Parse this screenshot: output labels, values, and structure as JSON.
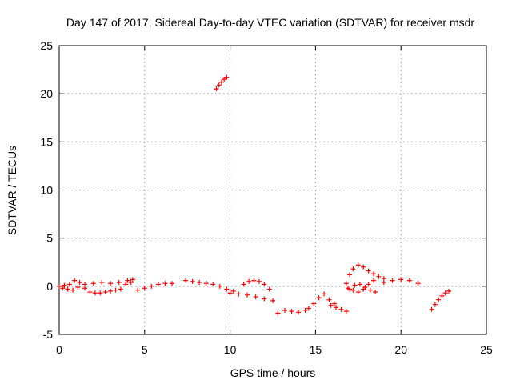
{
  "chart_data": {
    "type": "scatter",
    "title": "Day 147 of 2017, Sidereal Day-to-day VTEC variation (SDTVAR) for receiver msdr",
    "xlabel": "GPS time / hours",
    "ylabel": "SDTVAR / TECUs",
    "xlim": [
      0,
      25
    ],
    "ylim": [
      -5,
      25
    ],
    "xticks": [
      0,
      5,
      10,
      15,
      20,
      25
    ],
    "yticks": [
      -5,
      0,
      5,
      10,
      15,
      20,
      25
    ],
    "grid": true,
    "marker": "+",
    "color": "#ff0000",
    "segments": [
      {
        "name": "seg-a",
        "x": [
          0.0,
          0.3,
          0.6,
          0.9,
          1.2,
          1.5,
          1.8,
          2.1,
          2.4,
          2.7,
          3.0,
          3.3,
          3.6,
          3.9,
          4.2
        ],
        "y": [
          0.0,
          0.1,
          0.2,
          0.6,
          0.4,
          -0.2,
          -0.6,
          -0.7,
          -0.7,
          -0.6,
          -0.5,
          -0.4,
          -0.3,
          0.2,
          0.4
        ]
      },
      {
        "name": "seg-a2",
        "x": [
          0.2,
          0.5,
          0.8,
          1.1,
          1.5,
          2.0,
          2.5,
          3.0,
          3.5,
          4.0,
          4.3
        ],
        "y": [
          -0.2,
          -0.3,
          -0.4,
          -0.1,
          0.2,
          0.3,
          0.4,
          0.3,
          0.4,
          0.6,
          0.7
        ]
      },
      {
        "name": "seg-b",
        "x": [
          4.6,
          5.0,
          5.4,
          5.8,
          6.2,
          6.6
        ],
        "y": [
          -0.4,
          -0.2,
          0.0,
          0.2,
          0.3,
          0.3
        ]
      },
      {
        "name": "seg-c",
        "x": [
          7.4,
          7.8,
          8.2,
          8.6,
          9.0,
          9.4,
          9.8,
          10.2
        ],
        "y": [
          0.6,
          0.5,
          0.4,
          0.3,
          0.2,
          0.0,
          -0.3,
          -0.5
        ]
      },
      {
        "name": "seg-d",
        "x": [
          9.2,
          9.35,
          9.5,
          9.65,
          9.8
        ],
        "y": [
          20.5,
          20.9,
          21.2,
          21.5,
          21.7
        ]
      },
      {
        "name": "seg-e",
        "x": [
          10.0,
          10.5,
          11.0,
          11.5,
          12.0,
          12.5
        ],
        "y": [
          -0.7,
          -0.8,
          -0.9,
          -1.1,
          -1.3,
          -1.5
        ]
      },
      {
        "name": "seg-e2",
        "x": [
          10.8,
          11.1,
          11.4,
          11.7,
          12.0,
          12.3
        ],
        "y": [
          0.2,
          0.5,
          0.6,
          0.5,
          0.2,
          -0.3
        ]
      },
      {
        "name": "seg-f",
        "x": [
          12.8,
          13.2,
          13.6,
          14.0,
          14.4
        ],
        "y": [
          -2.8,
          -2.5,
          -2.6,
          -2.7,
          -2.5
        ]
      },
      {
        "name": "seg-g",
        "x": [
          14.6,
          14.9,
          15.2,
          15.5,
          15.8,
          16.1
        ],
        "y": [
          -2.3,
          -1.8,
          -1.2,
          -0.8,
          -1.4,
          -1.8
        ]
      },
      {
        "name": "seg-h",
        "x": [
          15.9,
          16.2,
          16.5,
          16.8
        ],
        "y": [
          -2.0,
          -2.2,
          -2.4,
          -2.6
        ]
      },
      {
        "name": "seg-i",
        "x": [
          16.8,
          17.0,
          17.2,
          17.5,
          17.8,
          18.1,
          18.4,
          18.7,
          19.0
        ],
        "y": [
          0.3,
          1.2,
          1.8,
          2.2,
          2.0,
          1.6,
          1.3,
          1.0,
          0.8
        ]
      },
      {
        "name": "seg-j",
        "x": [
          16.9,
          17.2,
          17.5,
          17.8,
          18.1,
          18.4
        ],
        "y": [
          -0.2,
          -0.4,
          -0.6,
          -0.3,
          0.2,
          0.6
        ]
      },
      {
        "name": "seg-k",
        "x": [
          17.0,
          17.3,
          17.6,
          17.9,
          18.2,
          18.5
        ],
        "y": [
          -0.3,
          0.1,
          0.2,
          -0.1,
          -0.4,
          -0.6
        ]
      },
      {
        "name": "seg-l",
        "x": [
          19.0,
          19.5,
          20.0,
          20.5,
          21.0
        ],
        "y": [
          0.4,
          0.6,
          0.7,
          0.6,
          0.3
        ]
      },
      {
        "name": "seg-m",
        "x": [
          21.8,
          22.0,
          22.2,
          22.4,
          22.6,
          22.8
        ],
        "y": [
          -2.4,
          -1.9,
          -1.4,
          -1.0,
          -0.7,
          -0.5
        ]
      }
    ]
  }
}
